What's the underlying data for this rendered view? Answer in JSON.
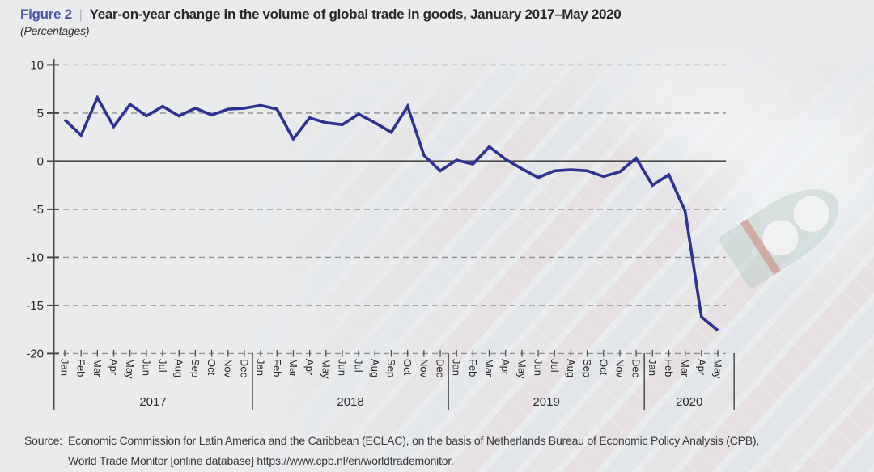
{
  "header": {
    "figure_label": "Figure 2",
    "separator": "|",
    "title": "Year-on-year change in the volume of global trade in goods, January 2017–May 2020",
    "subtitle": "(Percentages)"
  },
  "source": {
    "label": "Source:",
    "line1": "Economic Commission for Latin America and the Caribbean (ECLAC), on the basis of Netherlands Bureau of Economic Policy Analysis (CPB),",
    "line2": "World Trade Monitor [online database] https://www.cpb.nl/en/worldtrademonitor."
  },
  "colors": {
    "line": "#2e3391",
    "figure_accent": "#4a56a6",
    "axis": "#4b4b4b",
    "grid": "#8f8f8f",
    "text": "#2b2b2b",
    "background": "#e9ebed"
  },
  "chart_data": {
    "type": "line",
    "title": "Year-on-year change in the volume of global trade in goods, January 2017–May 2020",
    "subtitle": "(Percentages)",
    "xlabel": "",
    "ylabel": "Percentages",
    "ylim": [
      -20,
      10
    ],
    "yticks": [
      10,
      5,
      0,
      -5,
      -10,
      -15,
      -20
    ],
    "grid": "dashed-horizontal",
    "zero_line": true,
    "legend": "none",
    "series_name": "Year-on-year change in global trade volume (goods)",
    "year_groups": [
      {
        "year": "2017",
        "months": 12
      },
      {
        "year": "2018",
        "months": 12
      },
      {
        "year": "2019",
        "months": 12
      },
      {
        "year": "2020",
        "months": 5
      }
    ],
    "month_labels": [
      "Jan",
      "Feb",
      "Mar",
      "Apr",
      "May",
      "Jun",
      "Jul",
      "Aug",
      "Sep",
      "Oct",
      "Nov",
      "Dec",
      "Jan",
      "Feb",
      "Mar",
      "Apr",
      "May",
      "Jun",
      "Jul",
      "Aug",
      "Sep",
      "Oct",
      "Nov",
      "Dec",
      "Jan",
      "Feb",
      "Mar",
      "Apr",
      "May",
      "Jun",
      "Jul",
      "Aug",
      "Sep",
      "Oct",
      "Nov",
      "Dec",
      "Jan",
      "Feb",
      "Mar",
      "Apr",
      "May"
    ],
    "values": [
      4.3,
      2.7,
      6.6,
      3.6,
      5.9,
      4.7,
      5.7,
      4.7,
      5.5,
      4.8,
      5.4,
      5.5,
      5.8,
      5.4,
      2.3,
      4.5,
      4.0,
      3.8,
      4.9,
      4.0,
      3.0,
      5.7,
      0.6,
      -1.0,
      0.1,
      -0.3,
      1.5,
      0.2,
      -0.8,
      -1.7,
      -1.0,
      -0.9,
      -1.0,
      -1.6,
      -1.1,
      0.3,
      -2.5,
      -1.4,
      -5.2,
      -16.2,
      -17.6
    ]
  }
}
